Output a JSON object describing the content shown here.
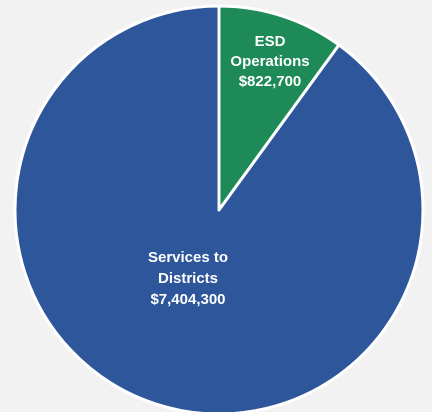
{
  "chart_data": {
    "type": "pie",
    "slices": [
      {
        "label_lines": [
          "ESD",
          "Operations"
        ],
        "value_label": "$822,700",
        "value": 822700,
        "color": "#1e8a57"
      },
      {
        "label_lines": [
          "Services to",
          "Districts"
        ],
        "value_label": "$7,404,300",
        "value": 7404300,
        "color": "#2e569b"
      }
    ],
    "start_angle_deg": 0,
    "direction": "clockwise",
    "slice_border_color": "#ffffff",
    "legend": "none"
  }
}
